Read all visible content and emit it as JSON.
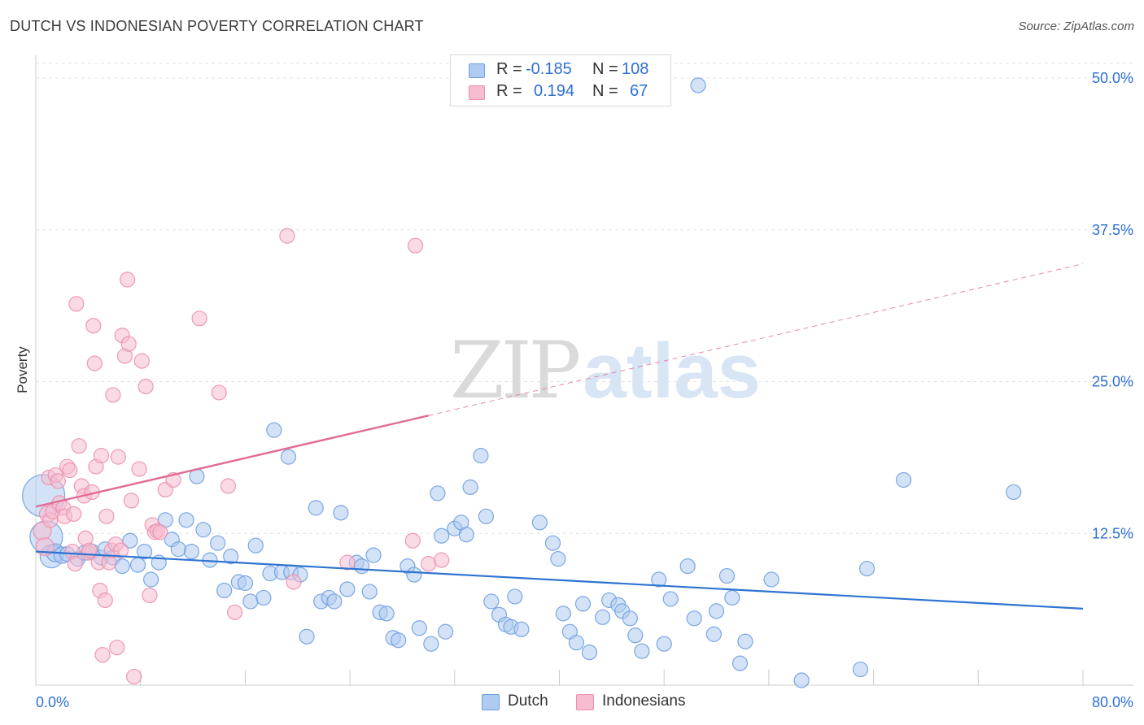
{
  "title": "DUTCH VS INDONESIAN POVERTY CORRELATION CHART",
  "source": "Source: ZipAtlas.com",
  "watermark": {
    "zip": "ZIP",
    "atlas": "atlas"
  },
  "legend": {
    "dutch": {
      "r_label": "R =",
      "r_value": "-0.185",
      "n_label": "N =",
      "n_value": "108"
    },
    "indonesians": {
      "r_label": "R =",
      "r_value": "0.194",
      "n_label": "N =",
      "n_value": "67"
    }
  },
  "colors": {
    "dutch_fill": "#aecbf1",
    "dutch_stroke": "#6e9fe0",
    "dutch_line": "#2e74d0",
    "indo_fill": "#f6bcd0",
    "indo_stroke": "#ec8fae",
    "indo_line": "#e26a96",
    "tick_label": "#2e6fd3"
  },
  "chart_data": {
    "type": "scatter",
    "title": "DUTCH VS INDONESIAN POVERTY CORRELATION CHART",
    "xlabel": "",
    "ylabel": "Poverty",
    "xlim": [
      0,
      80
    ],
    "ylim": [
      0,
      50
    ],
    "y_ticks": [
      {
        "value": 12.5,
        "label": "12.5%"
      },
      {
        "value": 25.0,
        "label": "25.0%"
      },
      {
        "value": 37.5,
        "label": "37.5%"
      },
      {
        "value": 50.0,
        "label": "50.0%"
      }
    ],
    "x_tick_labels": {
      "min": "0.0%",
      "max": "80.0%"
    },
    "series": [
      {
        "name": "Dutch",
        "trend": {
          "x0": 0,
          "y0": 11.0,
          "x1": 80,
          "y1": 6.3,
          "dashed_from": null
        },
        "points": [
          [
            0.6,
            15.6,
            26
          ],
          [
            0.8,
            12.2,
            20
          ],
          [
            1.2,
            10.6,
            14
          ],
          [
            1.5,
            10.9,
            11
          ],
          [
            2.0,
            10.7,
            10
          ],
          [
            2.4,
            10.8,
            9
          ],
          [
            3.2,
            10.4,
            9
          ],
          [
            3.7,
            10.9,
            9
          ],
          [
            4.3,
            11.0,
            9
          ],
          [
            5.0,
            10.5,
            9
          ],
          [
            5.3,
            11.2,
            9
          ],
          [
            5.9,
            10.5,
            9
          ],
          [
            6.6,
            9.8,
            9
          ],
          [
            7.2,
            11.9,
            9
          ],
          [
            7.8,
            9.9,
            9
          ],
          [
            8.3,
            11.0,
            9
          ],
          [
            8.8,
            8.7,
            9
          ],
          [
            9.4,
            10.1,
            9
          ],
          [
            9.9,
            13.6,
            9
          ],
          [
            10.4,
            12.0,
            9
          ],
          [
            10.9,
            11.2,
            9
          ],
          [
            11.5,
            13.6,
            9
          ],
          [
            11.9,
            11.0,
            9
          ],
          [
            12.3,
            17.2,
            9
          ],
          [
            12.8,
            12.8,
            9
          ],
          [
            13.3,
            10.3,
            9
          ],
          [
            13.9,
            11.7,
            9
          ],
          [
            14.4,
            7.8,
            9
          ],
          [
            14.9,
            10.6,
            9
          ],
          [
            15.5,
            8.5,
            9
          ],
          [
            16.0,
            8.4,
            9
          ],
          [
            16.4,
            6.9,
            9
          ],
          [
            16.8,
            11.5,
            9
          ],
          [
            17.4,
            7.2,
            9
          ],
          [
            17.9,
            9.2,
            9
          ],
          [
            18.2,
            21.0,
            9
          ],
          [
            18.8,
            9.3,
            9
          ],
          [
            19.3,
            18.8,
            9
          ],
          [
            19.5,
            9.3,
            9
          ],
          [
            20.2,
            9.1,
            9
          ],
          [
            20.7,
            4.0,
            9
          ],
          [
            21.4,
            14.6,
            9
          ],
          [
            21.8,
            6.9,
            9
          ],
          [
            22.4,
            7.2,
            9
          ],
          [
            22.8,
            6.9,
            9
          ],
          [
            23.3,
            14.2,
            9
          ],
          [
            23.8,
            7.9,
            9
          ],
          [
            24.5,
            10.1,
            9
          ],
          [
            24.9,
            9.8,
            9
          ],
          [
            25.5,
            7.7,
            9
          ],
          [
            25.8,
            10.7,
            9
          ],
          [
            26.3,
            6.0,
            9
          ],
          [
            26.8,
            5.9,
            9
          ],
          [
            27.3,
            3.9,
            9
          ],
          [
            27.7,
            3.7,
            9
          ],
          [
            28.4,
            9.8,
            9
          ],
          [
            28.9,
            9.1,
            9
          ],
          [
            29.3,
            4.7,
            9
          ],
          [
            30.2,
            3.4,
            9
          ],
          [
            30.7,
            15.8,
            9
          ],
          [
            31.0,
            12.3,
            9
          ],
          [
            31.3,
            4.4,
            9
          ],
          [
            32.0,
            12.9,
            9
          ],
          [
            32.5,
            13.4,
            9
          ],
          [
            32.9,
            12.4,
            9
          ],
          [
            33.2,
            16.3,
            9
          ],
          [
            34.0,
            18.9,
            9
          ],
          [
            34.4,
            13.9,
            9
          ],
          [
            34.8,
            6.9,
            9
          ],
          [
            35.4,
            5.8,
            9
          ],
          [
            35.9,
            5.0,
            9
          ],
          [
            36.3,
            4.8,
            9
          ],
          [
            36.6,
            7.3,
            9
          ],
          [
            37.1,
            4.6,
            9
          ],
          [
            38.5,
            13.4,
            9
          ],
          [
            39.5,
            11.7,
            9
          ],
          [
            39.9,
            10.4,
            9
          ],
          [
            40.3,
            5.9,
            9
          ],
          [
            40.8,
            4.4,
            9
          ],
          [
            41.3,
            3.5,
            9
          ],
          [
            41.8,
            6.7,
            9
          ],
          [
            42.3,
            2.7,
            9
          ],
          [
            43.3,
            5.6,
            9
          ],
          [
            43.8,
            7.0,
            9
          ],
          [
            44.5,
            6.6,
            9
          ],
          [
            44.8,
            6.1,
            9
          ],
          [
            45.4,
            5.5,
            9
          ],
          [
            45.8,
            4.1,
            9
          ],
          [
            46.3,
            2.8,
            9
          ],
          [
            47.6,
            8.7,
            9
          ],
          [
            48.0,
            3.4,
            9
          ],
          [
            48.5,
            7.1,
            9
          ],
          [
            49.8,
            9.8,
            9
          ],
          [
            50.3,
            5.5,
            9
          ],
          [
            50.6,
            49.4,
            9
          ],
          [
            51.8,
            4.2,
            9
          ],
          [
            52.0,
            6.1,
            9
          ],
          [
            52.8,
            9.0,
            9
          ],
          [
            53.2,
            7.2,
            9
          ],
          [
            53.8,
            1.8,
            9
          ],
          [
            54.2,
            3.6,
            9
          ],
          [
            56.2,
            8.7,
            9
          ],
          [
            58.5,
            0.4,
            9
          ],
          [
            63.0,
            1.3,
            9
          ],
          [
            63.5,
            9.6,
            9
          ],
          [
            66.3,
            16.9,
            9
          ],
          [
            74.7,
            15.9,
            9
          ]
        ]
      },
      {
        "name": "Indonesians",
        "trend": {
          "x0": 0,
          "y0": 14.7,
          "x1": 80,
          "y1": 34.7,
          "dashed_from": 30
        },
        "points": [
          [
            0.5,
            12.7,
            11
          ],
          [
            0.7,
            11.4,
            11
          ],
          [
            0.9,
            14.1,
            10
          ],
          [
            1.0,
            17.1,
            9
          ],
          [
            1.1,
            13.6,
            9
          ],
          [
            1.3,
            14.3,
            9
          ],
          [
            1.5,
            17.3,
            9
          ],
          [
            1.7,
            16.8,
            9
          ],
          [
            1.8,
            15.0,
            9
          ],
          [
            2.1,
            14.6,
            9
          ],
          [
            2.2,
            13.9,
            9
          ],
          [
            2.4,
            18.0,
            9
          ],
          [
            2.6,
            17.7,
            9
          ],
          [
            2.8,
            11.0,
            9
          ],
          [
            2.9,
            14.1,
            9
          ],
          [
            3.0,
            10.0,
            9
          ],
          [
            3.1,
            31.4,
            9
          ],
          [
            3.3,
            19.7,
            9
          ],
          [
            3.5,
            16.4,
            9
          ],
          [
            3.7,
            15.6,
            9
          ],
          [
            3.8,
            12.1,
            9
          ],
          [
            4.0,
            10.9,
            9
          ],
          [
            4.1,
            11.1,
            9
          ],
          [
            4.3,
            15.9,
            9
          ],
          [
            4.4,
            29.6,
            9
          ],
          [
            4.5,
            26.5,
            9
          ],
          [
            4.6,
            18.0,
            9
          ],
          [
            4.8,
            10.1,
            9
          ],
          [
            4.9,
            7.8,
            9
          ],
          [
            5.0,
            18.9,
            9
          ],
          [
            5.1,
            2.5,
            9
          ],
          [
            5.3,
            7.0,
            9
          ],
          [
            5.4,
            13.9,
            9
          ],
          [
            5.6,
            10.1,
            9
          ],
          [
            5.8,
            11.1,
            9
          ],
          [
            5.9,
            23.9,
            9
          ],
          [
            6.1,
            11.6,
            9
          ],
          [
            6.2,
            3.1,
            9
          ],
          [
            6.3,
            18.8,
            9
          ],
          [
            6.5,
            11.1,
            9
          ],
          [
            6.6,
            28.8,
            9
          ],
          [
            6.8,
            27.1,
            9
          ],
          [
            7.0,
            33.4,
            9
          ],
          [
            7.1,
            28.1,
            9
          ],
          [
            7.3,
            15.2,
            9
          ],
          [
            7.5,
            0.7,
            9
          ],
          [
            7.9,
            17.8,
            9
          ],
          [
            8.1,
            26.7,
            9
          ],
          [
            8.4,
            24.6,
            9
          ],
          [
            8.7,
            7.4,
            9
          ],
          [
            8.9,
            13.2,
            9
          ],
          [
            9.1,
            12.6,
            9
          ],
          [
            9.3,
            12.7,
            9
          ],
          [
            9.5,
            12.6,
            9
          ],
          [
            9.9,
            16.1,
            9
          ],
          [
            10.5,
            16.9,
            9
          ],
          [
            12.5,
            30.2,
            9
          ],
          [
            14.0,
            24.1,
            9
          ],
          [
            14.7,
            16.4,
            9
          ],
          [
            15.2,
            6.0,
            9
          ],
          [
            19.2,
            37.0,
            9
          ],
          [
            19.7,
            8.5,
            9
          ],
          [
            23.8,
            10.1,
            9
          ],
          [
            28.8,
            11.9,
            9
          ],
          [
            29.0,
            36.2,
            9
          ],
          [
            30.0,
            10.0,
            9
          ],
          [
            31.0,
            10.3,
            9
          ]
        ]
      }
    ]
  }
}
